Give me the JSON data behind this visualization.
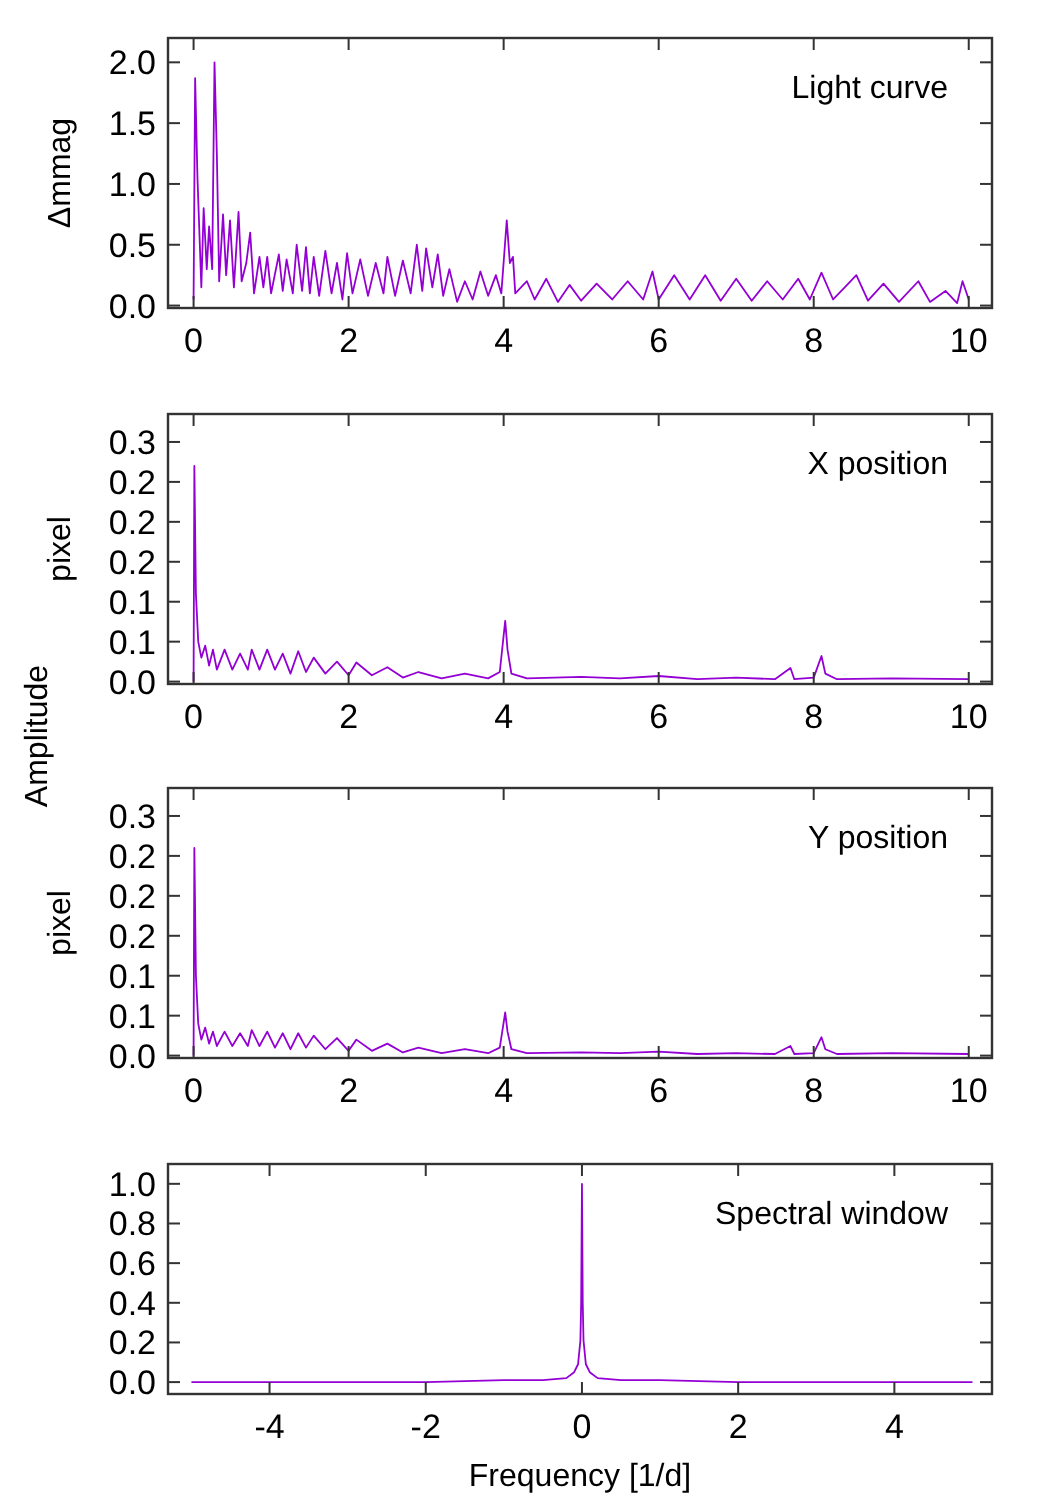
{
  "chart_data": [
    {
      "type": "line",
      "title": "Light curve",
      "ylabel": "Δmmag",
      "xlim": [
        -0.33,
        10.3
      ],
      "ylim": [
        -0.02,
        2.2
      ],
      "xticks": [
        0,
        2,
        4,
        6,
        8,
        10
      ],
      "yticks": [
        {
          "value": 0,
          "label": "0.0"
        },
        {
          "value": 0.5,
          "label": "0.5"
        },
        {
          "value": 1,
          "label": "1.0"
        },
        {
          "value": 1.5,
          "label": "1.5"
        },
        {
          "value": 2,
          "label": "2.0"
        }
      ],
      "series": [
        {
          "color": "#9400d3",
          "x": [
            0,
            0.02,
            0.05,
            0.1,
            0.13,
            0.17,
            0.2,
            0.24,
            0.27,
            0.3,
            0.33,
            0.38,
            0.42,
            0.47,
            0.52,
            0.58,
            0.62,
            0.68,
            0.73,
            0.78,
            0.85,
            0.9,
            0.95,
            1.0,
            1.1,
            1.15,
            1.2,
            1.28,
            1.33,
            1.4,
            1.45,
            1.5,
            1.55,
            1.62,
            1.7,
            1.78,
            1.85,
            1.92,
            1.98,
            2.05,
            2.15,
            2.25,
            2.35,
            2.45,
            2.5,
            2.6,
            2.7,
            2.8,
            2.88,
            2.95,
            3.0,
            3.08,
            3.15,
            3.22,
            3.3,
            3.4,
            3.5,
            3.6,
            3.7,
            3.8,
            3.9,
            3.97,
            4.04,
            4.08,
            4.12,
            4.15,
            4.3,
            4.4,
            4.55,
            4.7,
            4.85,
            5.0,
            5.2,
            5.4,
            5.6,
            5.8,
            5.92,
            6.0,
            6.2,
            6.4,
            6.6,
            6.8,
            7.0,
            7.2,
            7.4,
            7.6,
            7.8,
            7.95,
            8.1,
            8.25,
            8.4,
            8.55,
            8.7,
            8.9,
            9.1,
            9.35,
            9.5,
            9.7,
            9.85,
            9.92,
            10.0
          ],
          "values": [
            0.05,
            1.87,
            1.05,
            0.15,
            0.8,
            0.3,
            0.65,
            0.3,
            2.0,
            1.25,
            0.2,
            0.75,
            0.25,
            0.7,
            0.15,
            0.77,
            0.2,
            0.35,
            0.6,
            0.1,
            0.4,
            0.15,
            0.4,
            0.1,
            0.42,
            0.12,
            0.38,
            0.1,
            0.5,
            0.12,
            0.48,
            0.1,
            0.4,
            0.08,
            0.45,
            0.1,
            0.35,
            0.05,
            0.43,
            0.1,
            0.38,
            0.08,
            0.35,
            0.1,
            0.4,
            0.08,
            0.37,
            0.1,
            0.5,
            0.12,
            0.47,
            0.15,
            0.42,
            0.08,
            0.3,
            0.03,
            0.2,
            0.05,
            0.28,
            0.08,
            0.25,
            0.1,
            0.7,
            0.35,
            0.4,
            0.1,
            0.2,
            0.05,
            0.22,
            0.03,
            0.17,
            0.04,
            0.18,
            0.05,
            0.2,
            0.05,
            0.28,
            0.05,
            0.25,
            0.05,
            0.25,
            0.04,
            0.22,
            0.04,
            0.2,
            0.05,
            0.22,
            0.05,
            0.27,
            0.05,
            0.15,
            0.25,
            0.04,
            0.18,
            0.03,
            0.2,
            0.03,
            0.12,
            0.02,
            0.2,
            0.05
          ]
        }
      ]
    },
    {
      "type": "line",
      "title": "X position",
      "ylabel": "pixel",
      "annotations": [
        "Amplitude"
      ],
      "xlim": [
        -0.33,
        10.3
      ],
      "ylim": [
        -0.003,
        0.335
      ],
      "xticks": [
        0,
        2,
        4,
        6,
        8,
        10
      ],
      "yticks": [
        {
          "value": 0,
          "label": "0.0"
        },
        {
          "value": 0.05,
          "label": "0.1"
        },
        {
          "value": 0.1,
          "label": "0.1"
        },
        {
          "value": 0.15,
          "label": "0.2"
        },
        {
          "value": 0.2,
          "label": "0.2"
        },
        {
          "value": 0.25,
          "label": "0.2"
        },
        {
          "value": 0.3,
          "label": "0.3"
        }
      ],
      "series": [
        {
          "color": "#9400d3",
          "x": [
            0,
            0.01,
            0.03,
            0.06,
            0.1,
            0.15,
            0.2,
            0.25,
            0.3,
            0.4,
            0.5,
            0.6,
            0.7,
            0.75,
            0.85,
            0.95,
            1.05,
            1.15,
            1.25,
            1.35,
            1.45,
            1.55,
            1.7,
            1.85,
            2.0,
            2.1,
            2.3,
            2.5,
            2.7,
            2.9,
            3.2,
            3.5,
            3.8,
            3.95,
            4.02,
            4.05,
            4.1,
            4.3,
            5.0,
            5.5,
            6.0,
            6.5,
            7.0,
            7.5,
            7.7,
            7.75,
            8.0,
            8.1,
            8.15,
            8.3,
            9.0,
            10.0
          ],
          "values": [
            0.0,
            0.27,
            0.11,
            0.05,
            0.03,
            0.045,
            0.02,
            0.04,
            0.015,
            0.04,
            0.015,
            0.035,
            0.015,
            0.04,
            0.015,
            0.04,
            0.015,
            0.035,
            0.01,
            0.038,
            0.012,
            0.03,
            0.01,
            0.025,
            0.008,
            0.024,
            0.008,
            0.018,
            0.005,
            0.012,
            0.004,
            0.01,
            0.004,
            0.012,
            0.076,
            0.04,
            0.01,
            0.004,
            0.006,
            0.004,
            0.007,
            0.003,
            0.005,
            0.003,
            0.017,
            0.003,
            0.005,
            0.032,
            0.01,
            0.003,
            0.004,
            0.003
          ]
        }
      ]
    },
    {
      "type": "line",
      "title": "Y position",
      "ylabel": "pixel",
      "xlim": [
        -0.33,
        10.3
      ],
      "ylim": [
        -0.003,
        0.335
      ],
      "xticks": [
        0,
        2,
        4,
        6,
        8,
        10
      ],
      "yticks": [
        {
          "value": 0,
          "label": "0.0"
        },
        {
          "value": 0.05,
          "label": "0.1"
        },
        {
          "value": 0.1,
          "label": "0.1"
        },
        {
          "value": 0.15,
          "label": "0.2"
        },
        {
          "value": 0.2,
          "label": "0.2"
        },
        {
          "value": 0.25,
          "label": "0.2"
        },
        {
          "value": 0.3,
          "label": "0.3"
        }
      ],
      "series": [
        {
          "color": "#9400d3",
          "x": [
            0,
            0.01,
            0.03,
            0.06,
            0.1,
            0.15,
            0.2,
            0.25,
            0.3,
            0.4,
            0.5,
            0.6,
            0.7,
            0.75,
            0.85,
            0.95,
            1.05,
            1.15,
            1.25,
            1.35,
            1.45,
            1.55,
            1.7,
            1.85,
            2.0,
            2.1,
            2.3,
            2.5,
            2.7,
            2.9,
            3.2,
            3.5,
            3.8,
            3.95,
            4.02,
            4.05,
            4.1,
            4.3,
            5.0,
            5.5,
            6.0,
            6.5,
            7.0,
            7.5,
            7.7,
            7.75,
            8.0,
            8.1,
            8.15,
            8.3,
            9.0,
            10.0
          ],
          "values": [
            0.0,
            0.26,
            0.1,
            0.04,
            0.02,
            0.035,
            0.015,
            0.03,
            0.012,
            0.03,
            0.012,
            0.028,
            0.012,
            0.032,
            0.012,
            0.03,
            0.01,
            0.028,
            0.008,
            0.028,
            0.01,
            0.025,
            0.008,
            0.022,
            0.006,
            0.02,
            0.006,
            0.015,
            0.004,
            0.01,
            0.003,
            0.008,
            0.003,
            0.01,
            0.054,
            0.03,
            0.008,
            0.003,
            0.004,
            0.003,
            0.005,
            0.002,
            0.003,
            0.002,
            0.012,
            0.002,
            0.003,
            0.023,
            0.008,
            0.002,
            0.003,
            0.002
          ]
        }
      ]
    },
    {
      "type": "line",
      "title": "Spectral window",
      "xlabel": "Frequency [1/d]",
      "xlim": [
        -5.3,
        5.25
      ],
      "ylim": [
        -0.06,
        1.1
      ],
      "xticks": [
        -4,
        -2,
        0,
        2,
        4
      ],
      "yticks": [
        {
          "value": 0,
          "label": "0.0"
        },
        {
          "value": 0.2,
          "label": "0.2"
        },
        {
          "value": 0.4,
          "label": "0.4"
        },
        {
          "value": 0.6,
          "label": "0.6"
        },
        {
          "value": 0.8,
          "label": "0.8"
        },
        {
          "value": 1,
          "label": "1.0"
        }
      ],
      "series": [
        {
          "color": "#9400d3",
          "x": [
            -5,
            -4,
            -3,
            -2,
            -1,
            -0.5,
            -0.2,
            -0.1,
            -0.05,
            -0.02,
            -0.01,
            0,
            0.01,
            0.02,
            0.05,
            0.1,
            0.2,
            0.5,
            1,
            2,
            3,
            4,
            5
          ],
          "values": [
            0.0,
            0.0,
            0.0,
            0.0,
            0.01,
            0.01,
            0.02,
            0.05,
            0.09,
            0.21,
            0.4,
            1.0,
            0.4,
            0.21,
            0.09,
            0.05,
            0.02,
            0.01,
            0.01,
            0.0,
            0.0,
            0.0,
            0.0
          ]
        }
      ]
    }
  ]
}
